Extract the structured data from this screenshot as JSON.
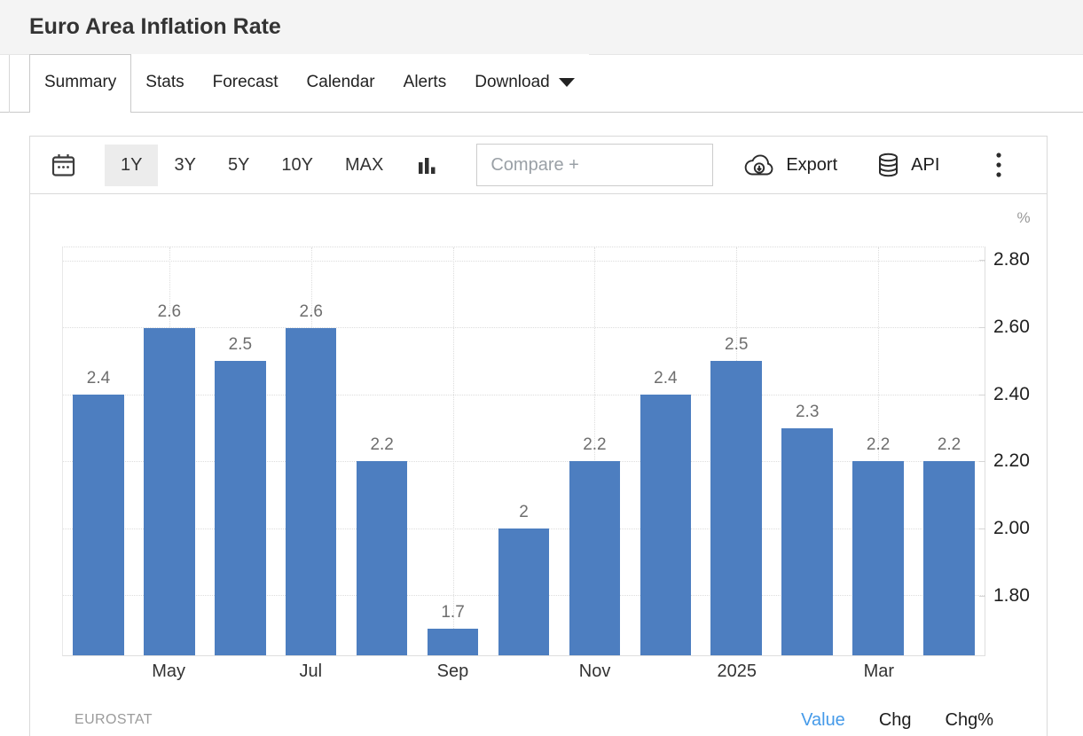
{
  "header": {
    "title": "Euro Area Inflation Rate"
  },
  "tabs": [
    {
      "label": "Summary",
      "active": true
    },
    {
      "label": "Stats"
    },
    {
      "label": "Forecast"
    },
    {
      "label": "Calendar"
    },
    {
      "label": "Alerts"
    },
    {
      "label": "Download",
      "caret": true
    }
  ],
  "toolbar": {
    "ranges": [
      {
        "label": "1Y",
        "active": true
      },
      {
        "label": "3Y"
      },
      {
        "label": "5Y"
      },
      {
        "label": "10Y"
      },
      {
        "label": "MAX"
      }
    ],
    "compare_placeholder": "Compare +",
    "export_label": "Export",
    "api_label": "API"
  },
  "chart_data": {
    "type": "bar",
    "title": "Euro Area Inflation Rate",
    "unit_label": "%",
    "bar_color": "#4d7ec0",
    "values": [
      2.4,
      2.6,
      2.5,
      2.6,
      2.2,
      1.7,
      2,
      2.2,
      2.4,
      2.5,
      2.3,
      2.2,
      2.2
    ],
    "value_labels": [
      "2.4",
      "2.6",
      "2.5",
      "2.6",
      "2.2",
      "1.7",
      "2",
      "2.2",
      "2.4",
      "2.5",
      "2.3",
      "2.2",
      "2.2"
    ],
    "x_ticks": [
      {
        "index": 1,
        "label": "May"
      },
      {
        "index": 3,
        "label": "Jul"
      },
      {
        "index": 5,
        "label": "Sep"
      },
      {
        "index": 7,
        "label": "Nov"
      },
      {
        "index": 9,
        "label": "2025"
      },
      {
        "index": 11,
        "label": "Mar"
      }
    ],
    "y_ticks": [
      "2.80",
      "2.60",
      "2.40",
      "2.20",
      "2.00",
      "1.80"
    ],
    "ylim": [
      1.62,
      2.84
    ],
    "grid": true,
    "legend": "none"
  },
  "footer": {
    "source": "EUROSTAT",
    "links": [
      {
        "label": "Value",
        "active": true
      },
      {
        "label": "Chg"
      },
      {
        "label": "Chg%"
      }
    ],
    "active_link_color": "#459ae9"
  }
}
